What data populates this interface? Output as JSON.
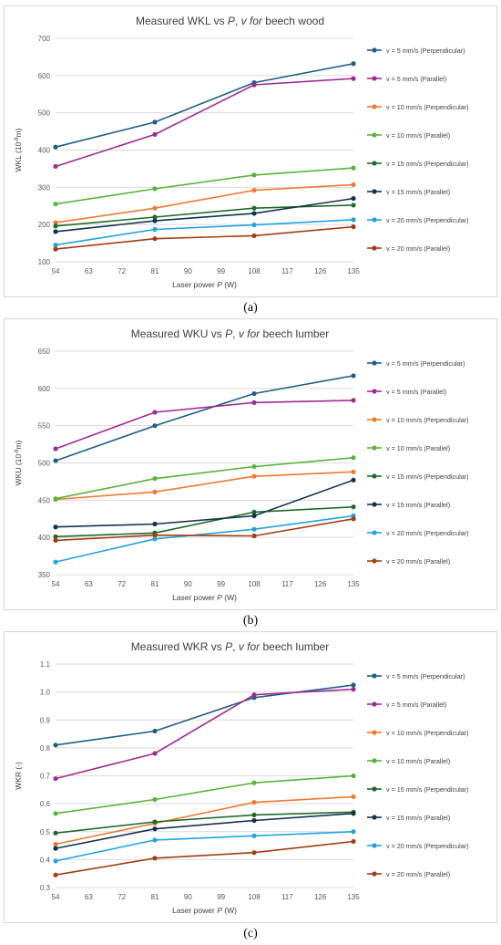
{
  "colors": [
    "#1f5f87",
    "#a02b93",
    "#f07a30",
    "#5ab33a",
    "#1f6b2a",
    "#13324f",
    "#22a3e0",
    "#a33d12"
  ],
  "legend_labels": [
    "v = 5 mm/s (Perpendicular)",
    "v = 5 mm/s (Parallel)",
    "v = 10 mm/s (Perpendicular)",
    "v = 10 mm/s (Parallel)",
    "v = 15 mm/s (Perpendicular)",
    "v = 15 mm/s (Parallel)",
    "v = 20 mm/s (Perpendicular)",
    "v = 20 mm/s (Parallel)"
  ],
  "captions": [
    "(a)",
    "(b)",
    "(c)"
  ],
  "chart_data": [
    {
      "type": "line",
      "title_parts": [
        "Measured WKL vs ",
        "P",
        ", ",
        "v for",
        " beech wood"
      ],
      "xlabel_parts": [
        "Laser power ",
        "P",
        " (W)"
      ],
      "ylabel_parts": [
        "WKL (10",
        "-6",
        "m)"
      ],
      "x": [
        54,
        81,
        108,
        135
      ],
      "xticks": [
        "54",
        "63",
        "72",
        "81",
        "90",
        "99",
        "108",
        "117",
        "126",
        "135"
      ],
      "yticks": [
        "100",
        "200",
        "300",
        "400",
        "500",
        "600",
        "700"
      ],
      "ylim": [
        100,
        700
      ],
      "grid": true,
      "legend": "right",
      "series": [
        {
          "name": "v = 5 mm/s (Perpendicular)",
          "values": [
            408,
            475,
            581,
            632
          ]
        },
        {
          "name": "v = 5 mm/s (Parallel)",
          "values": [
            356,
            442,
            575,
            592
          ]
        },
        {
          "name": "v = 10 mm/s (Perpendicular)",
          "values": [
            205,
            244,
            292,
            307
          ]
        },
        {
          "name": "v = 10 mm/s (Parallel)",
          "values": [
            255,
            296,
            333,
            352
          ]
        },
        {
          "name": "v = 15 mm/s (Perpendicular)",
          "values": [
            196,
            220,
            244,
            252
          ]
        },
        {
          "name": "v = 15 mm/s (Parallel)",
          "values": [
            181,
            210,
            230,
            270
          ]
        },
        {
          "name": "v = 20 mm/s (Perpendicular)",
          "values": [
            145,
            187,
            199,
            213
          ]
        },
        {
          "name": "v = 20 mm/s (Parallel)",
          "values": [
            134,
            162,
            170,
            194
          ]
        }
      ]
    },
    {
      "type": "line",
      "title_parts": [
        "Measured WKU vs ",
        "P",
        ", ",
        "v for",
        " beech lumber"
      ],
      "xlabel_parts": [
        "Laser power ",
        "P",
        " (W)"
      ],
      "ylabel_parts": [
        "WKU (10",
        "-6",
        "m)"
      ],
      "x": [
        54,
        81,
        108,
        135
      ],
      "xticks": [
        "54",
        "63",
        "72",
        "81",
        "90",
        "99",
        "108",
        "117",
        "126",
        "135"
      ],
      "yticks": [
        "350",
        "400",
        "450",
        "500",
        "550",
        "600",
        "650"
      ],
      "ylim": [
        350,
        650
      ],
      "grid": true,
      "legend": "right",
      "series": [
        {
          "name": "v = 5 mm/s (Perpendicular)",
          "values": [
            503,
            550,
            593,
            617
          ]
        },
        {
          "name": "v = 5 mm/s (Parallel)",
          "values": [
            519,
            568,
            581,
            584
          ]
        },
        {
          "name": "v = 10 mm/s (Perpendicular)",
          "values": [
            451,
            461,
            482,
            488
          ]
        },
        {
          "name": "v = 10 mm/s (Parallel)",
          "values": [
            452,
            479,
            495,
            507
          ]
        },
        {
          "name": "v = 15 mm/s (Perpendicular)",
          "values": [
            401,
            406,
            434,
            441
          ]
        },
        {
          "name": "v = 15 mm/s (Parallel)",
          "values": [
            414,
            418,
            429,
            477
          ]
        },
        {
          "name": "v = 20 mm/s (Perpendicular)",
          "values": [
            367,
            398,
            411,
            429
          ]
        },
        {
          "name": "v = 20 mm/s (Parallel)",
          "values": [
            396,
            403,
            402,
            425
          ]
        }
      ]
    },
    {
      "type": "line",
      "title_parts": [
        "Measured WKR vs ",
        "P",
        ", ",
        "v for",
        " beech lumber"
      ],
      "xlabel_parts": [
        "Laser power ",
        "P",
        " (W)"
      ],
      "ylabel_parts": [
        "WKR (-)"
      ],
      "x": [
        54,
        81,
        108,
        135
      ],
      "xticks": [
        "54",
        "63",
        "72",
        "81",
        "90",
        "99",
        "108",
        "117",
        "126",
        "135"
      ],
      "yticks": [
        "0.3",
        "0.4",
        "0.5",
        "0.6",
        "0.7",
        "0.8",
        "0.9",
        "1.0",
        "1.1"
      ],
      "ylim": [
        0.3,
        1.1
      ],
      "grid": true,
      "legend": "right",
      "series": [
        {
          "name": "v = 5 mm/s (Perpendicular)",
          "values": [
            0.81,
            0.86,
            0.98,
            1.025
          ]
        },
        {
          "name": "v = 5 mm/s (Parallel)",
          "values": [
            0.69,
            0.78,
            0.99,
            1.01
          ]
        },
        {
          "name": "v = 10 mm/s (Perpendicular)",
          "values": [
            0.455,
            0.53,
            0.605,
            0.625
          ]
        },
        {
          "name": "v = 10 mm/s (Parallel)",
          "values": [
            0.565,
            0.615,
            0.675,
            0.7
          ]
        },
        {
          "name": "v = 15 mm/s (Perpendicular)",
          "values": [
            0.495,
            0.535,
            0.56,
            0.57
          ]
        },
        {
          "name": "v = 15 mm/s (Parallel)",
          "values": [
            0.44,
            0.51,
            0.54,
            0.565
          ]
        },
        {
          "name": "v = 20 mm/s (Perpendicular)",
          "values": [
            0.395,
            0.47,
            0.485,
            0.5
          ]
        },
        {
          "name": "v = 20 mm/s (Parallel)",
          "values": [
            0.345,
            0.405,
            0.425,
            0.465
          ]
        }
      ]
    }
  ]
}
